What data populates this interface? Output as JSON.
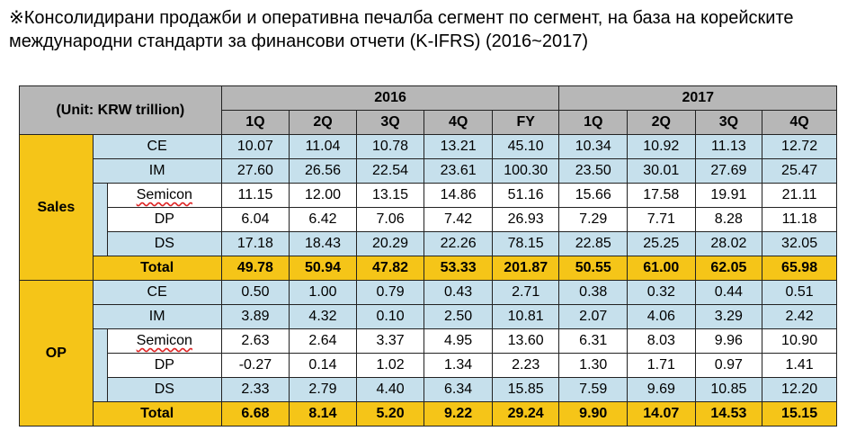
{
  "title": "※Консолидирани продажби и оперативна печалба сегмент по сегмент, на база на корейските международни стандарти за финансови отчети (K-IFRS) (2016~2017)",
  "table": {
    "unit_label": "(Unit: KRW trillion)",
    "years": [
      "2016",
      "2017"
    ],
    "quarters": [
      "1Q",
      "2Q",
      "3Q",
      "4Q",
      "FY",
      "1Q",
      "2Q",
      "3Q",
      "4Q"
    ],
    "sections": [
      {
        "label": "Sales",
        "rows": {
          "ce": {
            "label": "CE",
            "values": [
              "10.07",
              "11.04",
              "10.78",
              "13.21",
              "45.10",
              "10.34",
              "10.92",
              "11.13",
              "12.72"
            ]
          },
          "im": {
            "label": "IM",
            "values": [
              "27.60",
              "26.56",
              "22.54",
              "23.61",
              "100.30",
              "23.50",
              "30.01",
              "27.69",
              "25.47"
            ]
          },
          "semicon": {
            "label": "Semicon",
            "values": [
              "11.15",
              "12.00",
              "13.15",
              "14.86",
              "51.16",
              "15.66",
              "17.58",
              "19.91",
              "21.11"
            ]
          },
          "dp": {
            "label": "DP",
            "values": [
              "6.04",
              "6.42",
              "7.06",
              "7.42",
              "26.93",
              "7.29",
              "7.71",
              "8.28",
              "11.18"
            ]
          },
          "ds": {
            "label": "DS",
            "values": [
              "17.18",
              "18.43",
              "20.29",
              "22.26",
              "78.15",
              "22.85",
              "25.25",
              "28.02",
              "32.05"
            ]
          },
          "total": {
            "label": "Total",
            "values": [
              "49.78",
              "50.94",
              "47.82",
              "53.33",
              "201.87",
              "50.55",
              "61.00",
              "62.05",
              "65.98"
            ]
          }
        }
      },
      {
        "label": "OP",
        "rows": {
          "ce": {
            "label": "CE",
            "values": [
              "0.50",
              "1.00",
              "0.79",
              "0.43",
              "2.71",
              "0.38",
              "0.32",
              "0.44",
              "0.51"
            ]
          },
          "im": {
            "label": "IM",
            "values": [
              "3.89",
              "4.32",
              "0.10",
              "2.50",
              "10.81",
              "2.07",
              "4.06",
              "3.29",
              "2.42"
            ]
          },
          "semicon": {
            "label": "Semicon",
            "values": [
              "2.63",
              "2.64",
              "3.37",
              "4.95",
              "13.60",
              "6.31",
              "8.03",
              "9.96",
              "10.90"
            ]
          },
          "dp": {
            "label": "DP",
            "values": [
              "-0.27",
              "0.14",
              "1.02",
              "1.34",
              "2.23",
              "1.30",
              "1.71",
              "0.97",
              "1.41"
            ]
          },
          "ds": {
            "label": "DS",
            "values": [
              "2.33",
              "2.79",
              "4.40",
              "6.34",
              "15.85",
              "7.59",
              "9.69",
              "10.85",
              "12.20"
            ]
          },
          "total": {
            "label": "Total",
            "values": [
              "6.68",
              "8.14",
              "5.20",
              "9.22",
              "29.24",
              "9.90",
              "14.07",
              "14.53",
              "15.15"
            ]
          }
        }
      }
    ],
    "colors": {
      "header": "#b7b7b7",
      "segment": "#f5c518",
      "row_blue": "#c6e0ec",
      "row_white": "#ffffff",
      "total": "#f5c518"
    }
  }
}
